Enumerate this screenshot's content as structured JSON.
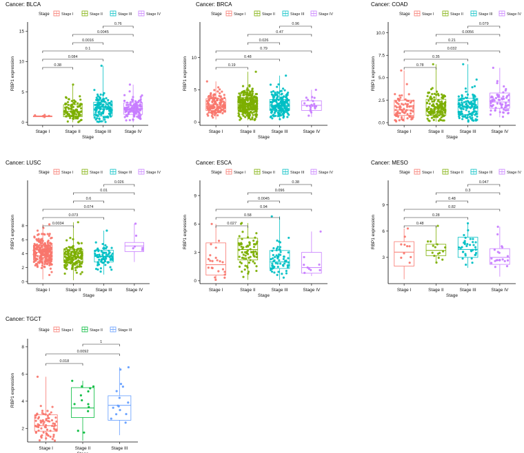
{
  "legend_title": "Stage",
  "colors": {
    "Stage I": "#F8766D",
    "Stage II": "#7CAE00",
    "Stage III": "#00BFC4",
    "Stage IV": "#C77CFF"
  },
  "tgct_colors": {
    "Stage I": "#F8766D",
    "Stage II": "#00BA38",
    "Stage III": "#619CFF"
  },
  "chart_data": [
    {
      "type": "box",
      "title": "Cancer: BLCA",
      "xlabel": "Stage",
      "ylabel": "RBP1 expression",
      "categories": [
        "Stage I",
        "Stage II",
        "Stage III",
        "Stage IV"
      ],
      "ylim": [
        -0.5,
        16.5
      ],
      "yticks": [
        0,
        5,
        10,
        15
      ],
      "yticklabels": [
        "0",
        "5",
        "10",
        "15"
      ],
      "boxes": [
        {
          "q1": 0.9,
          "median": 1.0,
          "q3": 1.05,
          "lo": 0.8,
          "hi": 1.2,
          "n": 5,
          "spread": 0.15
        },
        {
          "q1": 0.9,
          "median": 1.8,
          "q3": 2.9,
          "lo": 0,
          "hi": 6.2,
          "n": 110,
          "spread": 1.4
        },
        {
          "q1": 1.0,
          "median": 2.2,
          "q3": 3.3,
          "lo": 0,
          "hi": 9.3,
          "n": 130,
          "spread": 1.6
        },
        {
          "q1": 1.3,
          "median": 2.2,
          "q3": 3.2,
          "lo": 0,
          "hi": 6.2,
          "n": 130,
          "spread": 1.3
        }
      ],
      "comparisons": [
        {
          "pair": [
            1,
            2
          ],
          "p": "0.38"
        },
        {
          "pair": [
            1,
            3
          ],
          "p": "0.084"
        },
        {
          "pair": [
            1,
            4
          ],
          "p": "0.1"
        },
        {
          "pair": [
            2,
            3
          ],
          "p": "0.0016"
        },
        {
          "pair": [
            2,
            4
          ],
          "p": "0.0045"
        },
        {
          "pair": [
            3,
            4
          ],
          "p": "0.76"
        }
      ]
    },
    {
      "type": "box",
      "title": "Cancer: BRCA",
      "xlabel": "Stage",
      "ylabel": "RBP1 expression",
      "categories": [
        "Stage I",
        "Stage II",
        "Stage III",
        "Stage IV"
      ],
      "ylim": [
        -0.5,
        15.5
      ],
      "yticks": [
        0,
        5,
        10
      ],
      "yticklabels": [
        "0",
        "5",
        "10"
      ],
      "boxes": [
        {
          "q1": 1.8,
          "median": 2.7,
          "q3": 3.6,
          "lo": 0.4,
          "hi": 6.3,
          "n": 150,
          "spread": 1.3
        },
        {
          "q1": 1.9,
          "median": 2.7,
          "q3": 3.8,
          "lo": 0.3,
          "hi": 7.8,
          "n": 300,
          "spread": 1.5
        },
        {
          "q1": 1.8,
          "median": 2.6,
          "q3": 3.5,
          "lo": 0.3,
          "hi": 7.2,
          "n": 200,
          "spread": 1.4
        },
        {
          "q1": 1.8,
          "median": 2.6,
          "q3": 3.3,
          "lo": 0.8,
          "hi": 5.0,
          "n": 20,
          "spread": 1.0
        }
      ],
      "comparisons": [
        {
          "pair": [
            1,
            2
          ],
          "p": "0.19"
        },
        {
          "pair": [
            1,
            3
          ],
          "p": "0.48"
        },
        {
          "pair": [
            1,
            4
          ],
          "p": "0.79"
        },
        {
          "pair": [
            2,
            3
          ],
          "p": "0.026"
        },
        {
          "pair": [
            2,
            4
          ],
          "p": "0.47"
        },
        {
          "pair": [
            3,
            4
          ],
          "p": "0.96"
        }
      ]
    },
    {
      "type": "box",
      "title": "Cancer: COAD",
      "xlabel": "Stage",
      "ylabel": "RBP1 expression",
      "categories": [
        "Stage I",
        "Stage II",
        "Stage III",
        "Stage IV"
      ],
      "ylim": [
        -0.3,
        11.2
      ],
      "yticks": [
        0,
        2.5,
        5,
        7.5,
        10
      ],
      "yticklabels": [
        "0.0",
        "2.5",
        "5.0",
        "7.5",
        "10.0"
      ],
      "boxes": [
        {
          "q1": 0.8,
          "median": 1.4,
          "q3": 2.5,
          "lo": 0.1,
          "hi": 5.8,
          "n": 80,
          "spread": 1.2
        },
        {
          "q1": 0.8,
          "median": 1.5,
          "q3": 2.6,
          "lo": 0.1,
          "hi": 6.5,
          "n": 150,
          "spread": 1.3
        },
        {
          "q1": 0.9,
          "median": 1.7,
          "q3": 2.7,
          "lo": 0.1,
          "hi": 6.5,
          "n": 130,
          "spread": 1.3
        },
        {
          "q1": 1.6,
          "median": 2.3,
          "q3": 3.3,
          "lo": 0.6,
          "hi": 6.1,
          "n": 65,
          "spread": 1.2
        }
      ],
      "comparisons": [
        {
          "pair": [
            1,
            2
          ],
          "p": "0.78"
        },
        {
          "pair": [
            1,
            3
          ],
          "p": "0.35"
        },
        {
          "pair": [
            1,
            4
          ],
          "p": "0.032"
        },
        {
          "pair": [
            2,
            3
          ],
          "p": "0.21"
        },
        {
          "pair": [
            2,
            4
          ],
          "p": "0.0056"
        },
        {
          "pair": [
            3,
            4
          ],
          "p": "0.079"
        }
      ]
    },
    {
      "type": "box",
      "title": "Cancer: LUSC",
      "xlabel": "Stage",
      "ylabel": "RBP1 expression",
      "categories": [
        "Stage I",
        "Stage II",
        "Stage III",
        "Stage IV"
      ],
      "ylim": [
        -0.3,
        14.5
      ],
      "yticks": [
        0,
        2,
        4,
        6,
        8
      ],
      "yticklabels": [
        "0",
        "2",
        "4",
        "6",
        "8"
      ],
      "boxes": [
        {
          "q1": 3.1,
          "median": 4.2,
          "q3": 5.2,
          "lo": 0.3,
          "hi": 8.2,
          "n": 250,
          "spread": 1.5
        },
        {
          "q1": 2.7,
          "median": 3.5,
          "q3": 4.6,
          "lo": 0.2,
          "hi": 8.5,
          "n": 160,
          "spread": 1.4
        },
        {
          "q1": 2.8,
          "median": 3.6,
          "q3": 4.5,
          "lo": 1.0,
          "hi": 7.3,
          "n": 80,
          "spread": 1.2
        },
        {
          "q1": 4.3,
          "median": 5.1,
          "q3": 5.6,
          "lo": 2.8,
          "hi": 8.3,
          "n": 6,
          "spread": 1.0
        }
      ],
      "comparisons": [
        {
          "pair": [
            1,
            2
          ],
          "p": "0.0034"
        },
        {
          "pair": [
            1,
            3
          ],
          "p": "0.073"
        },
        {
          "pair": [
            1,
            4
          ],
          "p": "0.074"
        },
        {
          "pair": [
            2,
            3
          ],
          "p": "0.6"
        },
        {
          "pair": [
            2,
            4
          ],
          "p": "0.01"
        },
        {
          "pair": [
            3,
            4
          ],
          "p": "0.026"
        }
      ]
    },
    {
      "type": "box",
      "title": "Cancer: ESCA",
      "xlabel": "Stage",
      "ylabel": "RBP1 expression",
      "categories": [
        "Stage I",
        "Stage II",
        "Stage III",
        "Stage IV"
      ],
      "ylim": [
        -0.3,
        10.6
      ],
      "yticks": [
        0,
        3,
        6,
        9
      ],
      "yticklabels": [
        "0",
        "3",
        "6",
        "9"
      ],
      "boxes": [
        {
          "q1": 0.6,
          "median": 1.7,
          "q3": 4.0,
          "lo": 0.1,
          "hi": 6.0,
          "n": 22,
          "spread": 1.8
        },
        {
          "q1": 2.2,
          "median": 3.3,
          "q3": 4.5,
          "lo": 0.1,
          "hi": 6.1,
          "n": 75,
          "spread": 1.5
        },
        {
          "q1": 1.3,
          "median": 2.0,
          "q3": 3.2,
          "lo": 0.1,
          "hi": 6.8,
          "n": 65,
          "spread": 1.3
        },
        {
          "q1": 0.8,
          "median": 1.4,
          "q3": 3.0,
          "lo": 0.5,
          "hi": 5.2,
          "n": 9,
          "spread": 1.4
        }
      ],
      "comparisons": [
        {
          "pair": [
            1,
            2
          ],
          "p": "0.027"
        },
        {
          "pair": [
            1,
            3
          ],
          "p": "0.58"
        },
        {
          "pair": [
            1,
            4
          ],
          "p": "0.94"
        },
        {
          "pair": [
            2,
            3
          ],
          "p": "0.0045"
        },
        {
          "pair": [
            2,
            4
          ],
          "p": "0.096"
        },
        {
          "pair": [
            3,
            4
          ],
          "p": "0.38"
        }
      ]
    },
    {
      "type": "box",
      "title": "Cancer: MESO",
      "xlabel": "Stage",
      "ylabel": "RBP1 expression",
      "categories": [
        "Stage I",
        "Stage II",
        "Stage III",
        "Stage IV"
      ],
      "ylim": [
        0,
        11.8
      ],
      "yticks": [
        3,
        6,
        9
      ],
      "yticklabels": [
        "3",
        "6",
        "9"
      ],
      "boxes": [
        {
          "q1": 2.0,
          "median": 3.6,
          "q3": 4.8,
          "lo": 0.5,
          "hi": 6.3,
          "n": 10,
          "spread": 1.6
        },
        {
          "q1": 3.2,
          "median": 3.8,
          "q3": 4.5,
          "lo": 2.3,
          "hi": 6.6,
          "n": 15,
          "spread": 1.0
        },
        {
          "q1": 3.0,
          "median": 3.9,
          "q3": 5.3,
          "lo": 1.8,
          "hi": 6.9,
          "n": 35,
          "spread": 1.2
        },
        {
          "q1": 2.2,
          "median": 3.0,
          "q3": 4.0,
          "lo": 0.8,
          "hi": 6.5,
          "n": 20,
          "spread": 1.2
        }
      ],
      "comparisons": [
        {
          "pair": [
            1,
            2
          ],
          "p": "0.48"
        },
        {
          "pair": [
            1,
            3
          ],
          "p": "0.28"
        },
        {
          "pair": [
            1,
            4
          ],
          "p": "0.82"
        },
        {
          "pair": [
            2,
            3
          ],
          "p": "0.48"
        },
        {
          "pair": [
            2,
            4
          ],
          "p": "0.3"
        },
        {
          "pair": [
            3,
            4
          ],
          "p": "0.047"
        }
      ]
    },
    {
      "type": "box",
      "title": "Cancer: TGCT",
      "xlabel": "Stage",
      "ylabel": "RBP1 expression",
      "categories": [
        "Stage I",
        "Stage II",
        "Stage III"
      ],
      "ylim": [
        1,
        8.6
      ],
      "yticks": [
        2,
        4,
        6,
        8
      ],
      "yticklabels": [
        "2",
        "4",
        "6",
        "8"
      ],
      "boxes": [
        {
          "q1": 1.8,
          "median": 2.2,
          "q3": 3.0,
          "lo": 1.1,
          "hi": 5.8,
          "n": 75,
          "spread": 0.9
        },
        {
          "q1": 2.8,
          "median": 3.5,
          "q3": 5.0,
          "lo": 1.1,
          "hi": 5.5,
          "n": 13,
          "spread": 1.2
        },
        {
          "q1": 2.6,
          "median": 3.7,
          "q3": 4.4,
          "lo": 1.5,
          "hi": 6.5,
          "n": 15,
          "spread": 1.2
        }
      ],
      "comparisons": [
        {
          "pair": [
            1,
            2
          ],
          "p": "0.018"
        },
        {
          "pair": [
            1,
            3
          ],
          "p": "0.0092"
        },
        {
          "pair": [
            2,
            3
          ],
          "p": "1"
        }
      ]
    }
  ]
}
